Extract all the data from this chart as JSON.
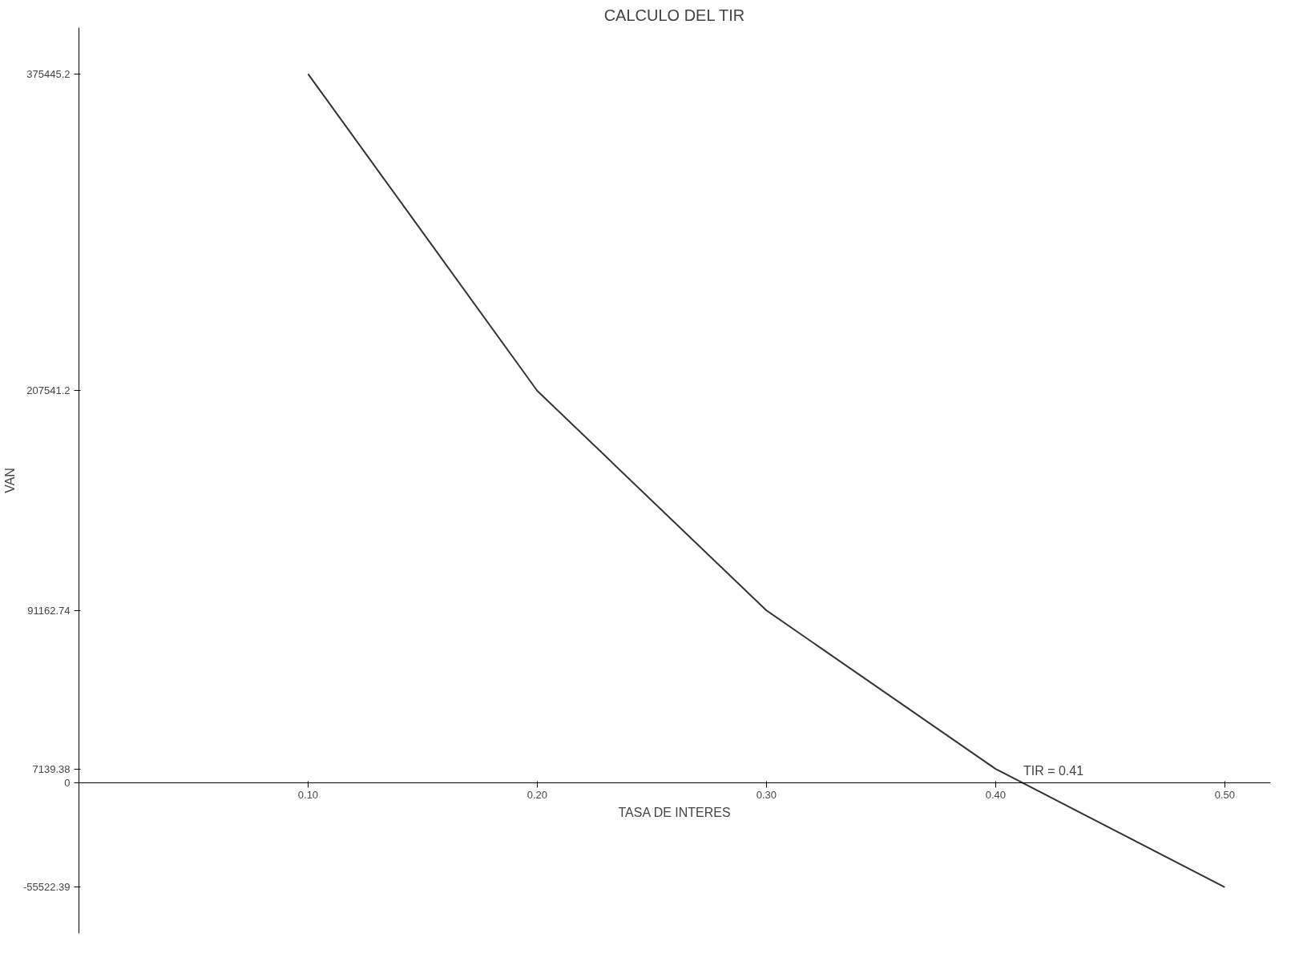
{
  "chart_data": {
    "type": "line",
    "title": "CALCULO DEL TIR",
    "xlabel": "TASA DE INTERES",
    "ylabel": "VAN",
    "x": [
      0.1,
      0.2,
      0.3,
      0.4,
      0.5
    ],
    "series": [
      {
        "color": "#333333",
        "values": [
          375445.2,
          207541.2,
          91162.74,
          7139.38,
          -55522.39
        ]
      }
    ],
    "xlim": [
      0,
      0.52
    ],
    "xticks": [
      {
        "value": 0.1,
        "label": "0.10"
      },
      {
        "value": 0.2,
        "label": "0.20"
      },
      {
        "value": 0.3,
        "label": "0.30"
      },
      {
        "value": 0.4,
        "label": "0.40"
      },
      {
        "value": 0.5,
        "label": "0.50"
      }
    ],
    "ylim": [
      -80000,
      400000
    ],
    "yticks": [
      -55522.39,
      0,
      7139.38,
      91162.74,
      207541.2,
      375445.2
    ],
    "annotations": [
      {
        "text": "TIR = 0.41",
        "x": 0.41,
        "y": 0
      }
    ],
    "grid": false,
    "marker": "none",
    "line_style": "solid"
  }
}
